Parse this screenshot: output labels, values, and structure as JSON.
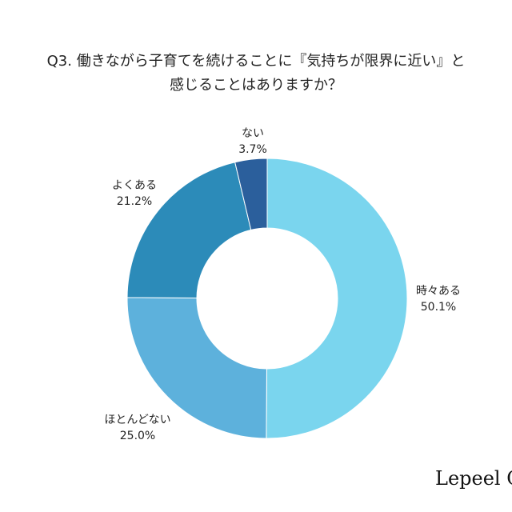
{
  "chart_data": {
    "type": "pie",
    "variant": "donut",
    "title_lines": [
      "Q3. 働きながら子育てを続けることに『気持ちが限界に近い』と",
      "感じることはありますか？"
    ],
    "categories": [
      "時々ある",
      "ほとんどない",
      "よくある",
      "ない"
    ],
    "values": [
      50.1,
      25.0,
      21.2,
      3.7
    ],
    "value_labels": [
      "50.1%",
      "25.0%",
      "21.2%",
      "3.7%"
    ],
    "colors": [
      "#7AD5EE",
      "#5DB1DC",
      "#2C8BB9",
      "#2B5F9C"
    ],
    "start": "top, clockwise",
    "legend": "none (labels beside slices)"
  },
  "brand": "Lepeel C"
}
